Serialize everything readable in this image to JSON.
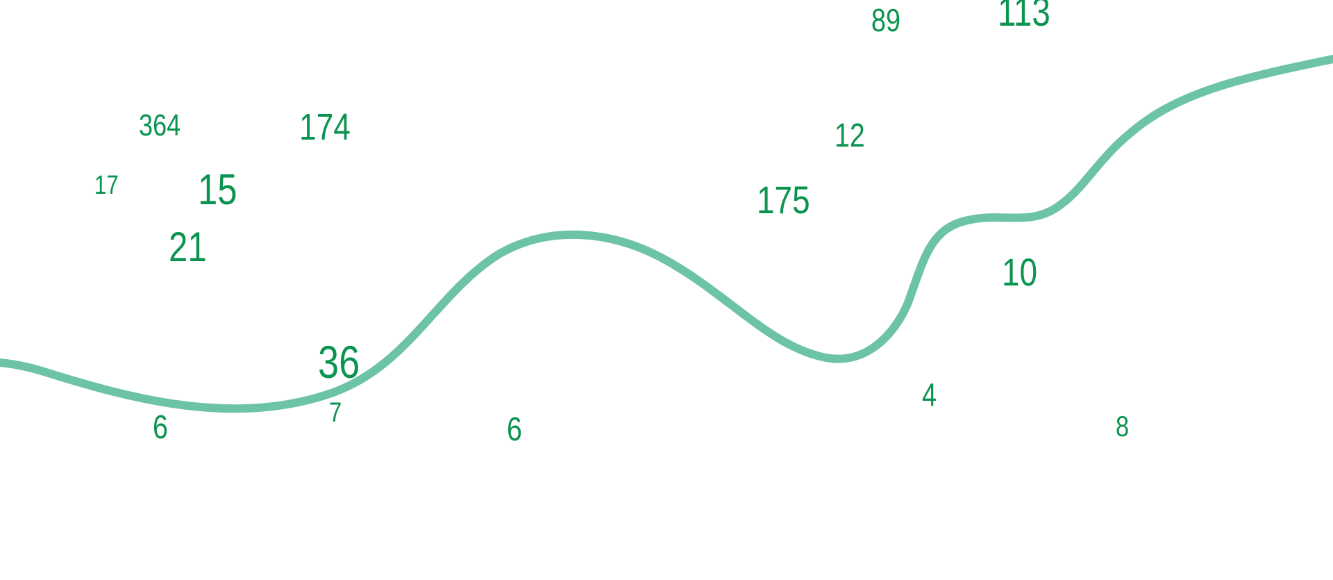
{
  "colors": {
    "number": "#0b9350",
    "curve": "#6cc3a5",
    "background": "#ffffff"
  },
  "numbers": [
    "89",
    "113",
    "364",
    "174",
    "17",
    "15",
    "12",
    "175",
    "21",
    "10",
    "36",
    "4",
    "7",
    "6",
    "6",
    "8"
  ]
}
